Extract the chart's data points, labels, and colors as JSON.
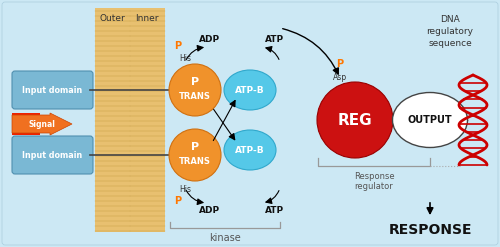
{
  "bg_color": "#cce8f4",
  "membrane_color": "#e8c070",
  "membrane_line_color": "#c8a045",
  "input_domain_color": "#7ab8d4",
  "input_domain_edge": "#5090b0",
  "trans_color": "#f0922b",
  "trans_edge": "#d07010",
  "atpb_color": "#55c8e8",
  "atpb_edge": "#30a8cc",
  "reg_color": "#cc1111",
  "reg_edge": "#990000",
  "output_color": "#ffffff",
  "output_edge": "#444444",
  "signal_color1": "#f07020",
  "signal_color2": "#ee1111",
  "outer_label": "Outer",
  "inner_label": "Inner",
  "dna_label": "DNA\nregulatory\nsequence",
  "response_reg_label": "Response\nregulator",
  "kinase_label": "kinase",
  "response_text": "RESPONSE",
  "adp_label": "ADP",
  "atp_label": "ATP",
  "his_label": "His",
  "p_label": "P",
  "asp_label": "Asp",
  "signal_text": "Signal",
  "input_text": "Input domain",
  "trans_text1": "P",
  "trans_text2": "TRANS",
  "atpb_text": "ATP-B",
  "reg_text": "REG",
  "output_text": "OUTPUT"
}
